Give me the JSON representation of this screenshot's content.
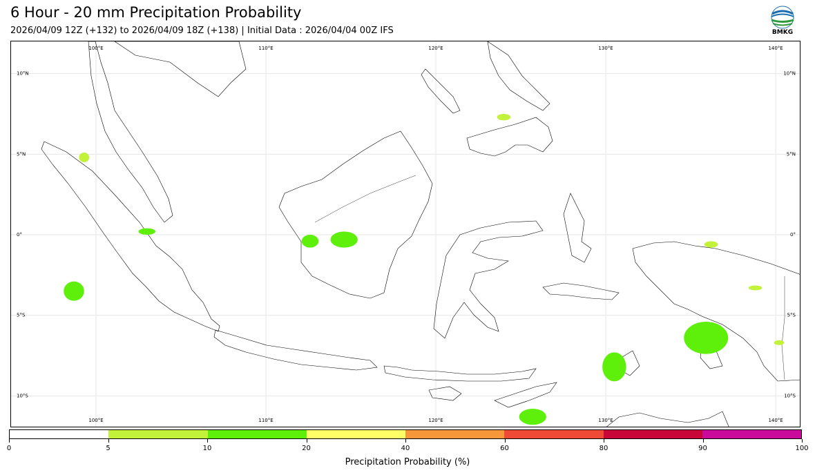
{
  "header": {
    "title": "6 Hour - 20 mm Precipitation Probability",
    "subtitle": "2026/04/09 12Z (+132) to 2026/04/09 18Z (+138) | Initial Data : 2026/04/04 00Z IFS"
  },
  "logo": {
    "text": "BMKG",
    "icon": "bmkg-logo-icon"
  },
  "map": {
    "lon_range": [
      95.0,
      141.5
    ],
    "lat_range": [
      -12.0,
      12.0
    ],
    "lon_ticks": [
      {
        "value": 100,
        "label": "100°E"
      },
      {
        "value": 110,
        "label": "110°E"
      },
      {
        "value": 120,
        "label": "120°E"
      },
      {
        "value": 130,
        "label": "130°E"
      },
      {
        "value": 140,
        "label": "140°E"
      }
    ],
    "lat_ticks": [
      {
        "value": 10,
        "label": "10°N"
      },
      {
        "value": 5,
        "label": "5°N"
      },
      {
        "value": 0,
        "label": "0°"
      },
      {
        "value": -5,
        "label": "5°S"
      },
      {
        "value": -10,
        "label": "10°S"
      }
    ],
    "grid": true,
    "land_outline_color": "#000000",
    "precip_areas": [
      {
        "lon": 135.9,
        "lat": -6.4,
        "rlon": 1.3,
        "rlat": 1.0,
        "class": "10-20"
      },
      {
        "lon": 130.5,
        "lat": -8.2,
        "rlon": 0.7,
        "rlat": 0.9,
        "class": "10-20"
      },
      {
        "lon": 125.7,
        "lat": -11.3,
        "rlon": 0.8,
        "rlat": 0.5,
        "class": "10-20"
      },
      {
        "lon": 98.7,
        "lat": -3.5,
        "rlon": 0.6,
        "rlat": 0.6,
        "class": "10-20"
      },
      {
        "lon": 114.6,
        "lat": -0.3,
        "rlon": 0.8,
        "rlat": 0.5,
        "class": "10-20"
      },
      {
        "lon": 112.6,
        "lat": -0.4,
        "rlon": 0.5,
        "rlat": 0.4,
        "class": "10-20"
      },
      {
        "lon": 103.0,
        "lat": 0.2,
        "rlon": 0.5,
        "rlat": 0.2,
        "class": "10-20"
      },
      {
        "lon": 99.3,
        "lat": 4.8,
        "rlon": 0.3,
        "rlat": 0.3,
        "class": "5-10"
      },
      {
        "lon": 124.0,
        "lat": 7.3,
        "rlon": 0.4,
        "rlat": 0.2,
        "class": "5-10"
      },
      {
        "lon": 136.2,
        "lat": -0.6,
        "rlon": 0.4,
        "rlat": 0.2,
        "class": "5-10"
      },
      {
        "lon": 138.8,
        "lat": -3.3,
        "rlon": 0.4,
        "rlat": 0.15,
        "class": "5-10"
      },
      {
        "lon": 140.2,
        "lat": -6.7,
        "rlon": 0.3,
        "rlat": 0.15,
        "class": "5-10"
      }
    ]
  },
  "colorbar": {
    "title": "Precipitation Probability (%)",
    "ticks": [
      "0",
      "5",
      "10",
      "20",
      "40",
      "60",
      "80",
      "90",
      "100"
    ],
    "colors": [
      "#ffffff",
      "#c2f23a",
      "#5ef00a",
      "#ffff66",
      "#f6973a",
      "#ee4a35",
      "#c90638",
      "#c90a9a"
    ]
  }
}
